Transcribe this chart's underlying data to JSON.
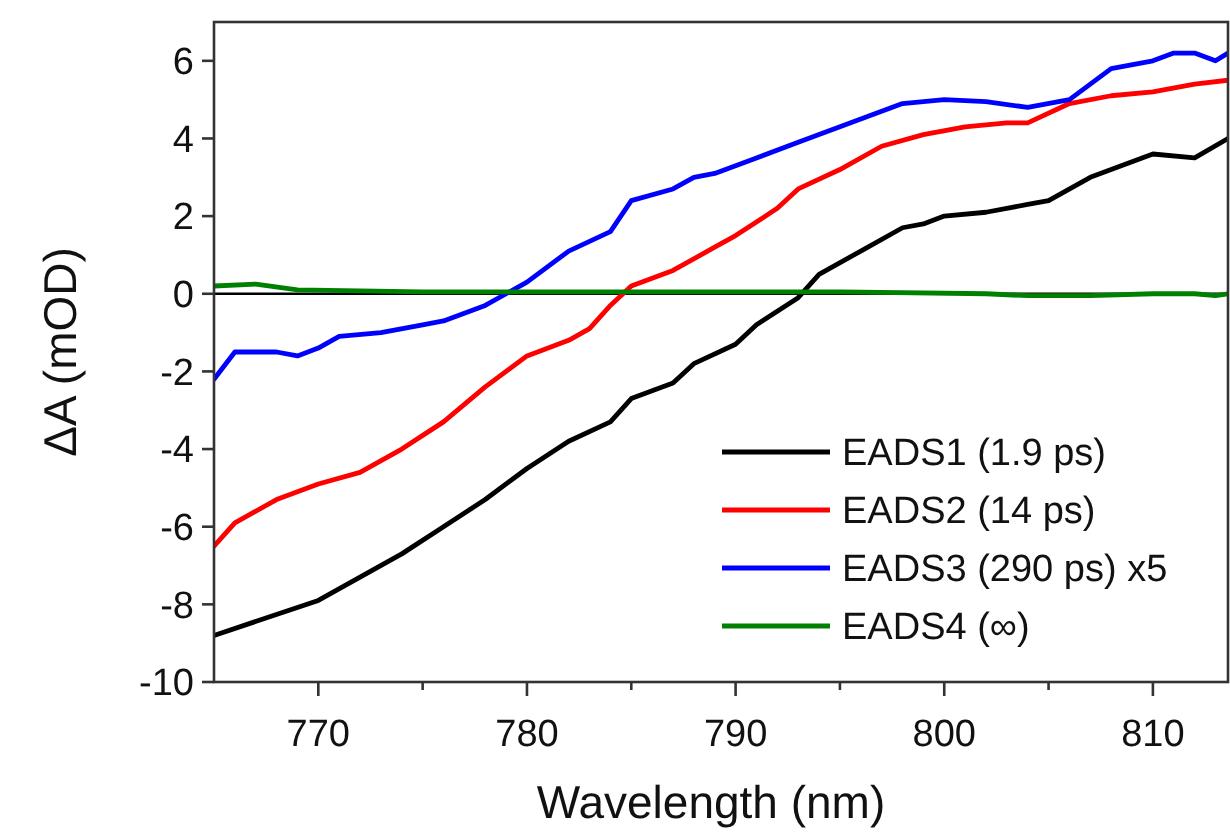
{
  "chart_data": {
    "type": "line",
    "xlabel": "Wavelength (nm)",
    "ylabel": "ΔA (mOD)",
    "xlim": [
      765,
      813.6
    ],
    "ylim": [
      -10,
      7
    ],
    "xticks": [
      770,
      {
        "value": 775,
        "label": null
      },
      780,
      {
        "value": 785,
        "label": null
      },
      790,
      {
        "value": 795,
        "label": null
      },
      800,
      {
        "value": 805,
        "label": null
      },
      810
    ],
    "yticks": [
      -10,
      -8,
      -6,
      -4,
      -2,
      0,
      2,
      4,
      6
    ],
    "grid": false,
    "legend": "bottom right",
    "marker": "none",
    "line_style": "solid",
    "ref_lines": [
      {
        "axis": "y",
        "value": 0,
        "color": "#000000"
      }
    ],
    "series": [
      {
        "name": "EADS1 (1.9 ps)",
        "color": "#000000",
        "x": [
          765,
          770,
          772,
          774,
          776,
          778,
          780,
          782,
          784,
          785,
          787,
          788,
          790,
          791,
          793,
          794,
          796,
          798,
          799,
          800,
          802,
          804,
          805,
          807,
          809,
          810,
          812,
          813.6
        ],
        "values": [
          -8.8,
          -7.9,
          -7.3,
          -6.7,
          -6.0,
          -5.3,
          -4.5,
          -3.8,
          -3.3,
          -2.7,
          -2.3,
          -1.8,
          -1.3,
          -0.8,
          -0.1,
          0.5,
          1.1,
          1.7,
          1.8,
          2.0,
          2.1,
          2.3,
          2.4,
          3.0,
          3.4,
          3.6,
          3.5,
          4.0
        ]
      },
      {
        "name": "EADS2 (14 ps)",
        "color": "#ff0000",
        "x": [
          765,
          766,
          768,
          770,
          772,
          774,
          776,
          778,
          780,
          782,
          783,
          784,
          785,
          787,
          789,
          790,
          792,
          793,
          795,
          797,
          799,
          801,
          803,
          804,
          806,
          808,
          810,
          812,
          813.6
        ],
        "values": [
          -6.5,
          -5.9,
          -5.3,
          -4.9,
          -4.6,
          -4.0,
          -3.3,
          -2.4,
          -1.6,
          -1.2,
          -0.9,
          -0.3,
          0.2,
          0.6,
          1.2,
          1.5,
          2.2,
          2.7,
          3.2,
          3.8,
          4.1,
          4.3,
          4.4,
          4.4,
          4.9,
          5.1,
          5.2,
          5.4,
          5.5
        ]
      },
      {
        "name": "EADS3 (290 ps) x5",
        "color": "#0000ff",
        "x": [
          765,
          766,
          768,
          769,
          770,
          771,
          773,
          775,
          776,
          778,
          779,
          780,
          782,
          784,
          785,
          787,
          788,
          789,
          791,
          793,
          795,
          797,
          798,
          800,
          802,
          804,
          806,
          808,
          810,
          811,
          812,
          813,
          813.6
        ],
        "values": [
          -2.2,
          -1.5,
          -1.5,
          -1.6,
          -1.4,
          -1.1,
          -1.0,
          -0.8,
          -0.7,
          -0.3,
          0.0,
          0.3,
          1.1,
          1.6,
          2.4,
          2.7,
          3.0,
          3.1,
          3.5,
          3.9,
          4.3,
          4.7,
          4.9,
          5.0,
          4.95,
          4.8,
          5.0,
          5.8,
          6.0,
          6.2,
          6.2,
          6.0,
          6.2
        ]
      },
      {
        "name": "EADS4 (∞)",
        "color": "#008000",
        "x": [
          765,
          767,
          769,
          775,
          785,
          795,
          802,
          804,
          807,
          810,
          812,
          813,
          813.6
        ],
        "values": [
          0.2,
          0.25,
          0.1,
          0.05,
          0.05,
          0.05,
          0.0,
          -0.05,
          -0.05,
          0.0,
          0.0,
          -0.05,
          0.0
        ]
      }
    ]
  }
}
